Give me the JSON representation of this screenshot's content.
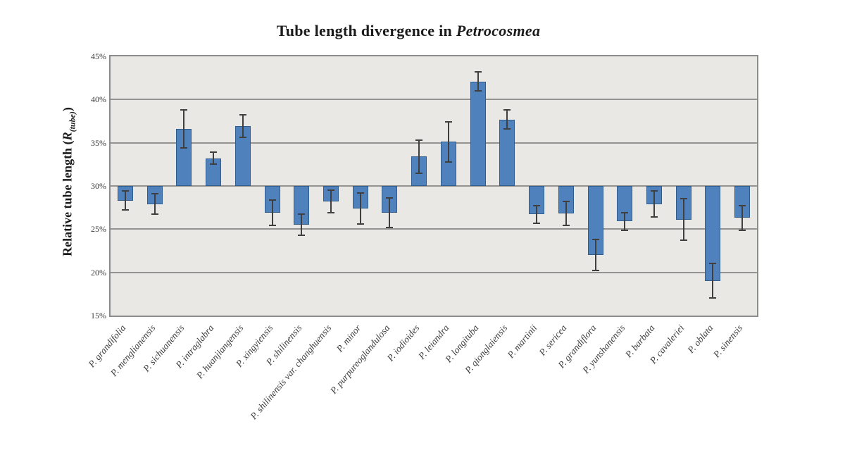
{
  "title": {
    "prefix": "Tube length divergence in ",
    "genus": "Petrocosmea"
  },
  "y_axis": {
    "label_main": "Relative tube length (",
    "label_symbol": "R",
    "label_sub": "(tube)",
    "label_close": ")",
    "tick_labels": [
      "45%",
      "40%",
      "35%",
      "30%",
      "25%",
      "20%",
      "15%"
    ]
  },
  "chart_data": {
    "type": "bar",
    "title": "Tube length divergence in Petrocosmea",
    "xlabel": "",
    "ylabel": "Relative tube length (R(tube))",
    "ylim": [
      15,
      45
    ],
    "ytick_step": 5,
    "baseline": 30,
    "grid": true,
    "legend": false,
    "bar_color": "#4f81bd",
    "bar_border_color": "#305d8c",
    "error_color": "#3f3f3f",
    "plot_bg": "#e9e8e5",
    "gridline_color": "#959391",
    "categories": [
      "P. grandifolia",
      "P. menglianensis",
      "P. sichuanensis",
      "P. intraglabra",
      "P. huanjiangensis",
      "P. xingyiensis",
      "P. shilinensis",
      "P. shilinensis var. changhuensis",
      "P. minor",
      "P. purpureoglandulosa",
      "P. iodioides",
      "P. leiandra",
      "P. longituba",
      "P. qionglaiensis",
      "P. martinii",
      "P. sericea",
      "P. grandiflora",
      "P. yunshanensis",
      "P. barbata",
      "P. cavaleriei",
      "P. oblata",
      "P. sinensis"
    ],
    "values": [
      28.3,
      27.9,
      36.6,
      33.2,
      36.9,
      26.9,
      25.5,
      28.2,
      27.4,
      26.9,
      33.4,
      35.1,
      42.1,
      37.7,
      26.7,
      26.8,
      22.0,
      25.9,
      27.9,
      26.1,
      19.0,
      26.3
    ],
    "errors": [
      1.1,
      1.2,
      2.2,
      0.7,
      1.3,
      1.5,
      1.2,
      1.3,
      1.8,
      1.7,
      1.9,
      2.3,
      1.1,
      1.1,
      1.0,
      1.4,
      1.8,
      1.0,
      1.5,
      2.4,
      2.0,
      1.4
    ]
  }
}
